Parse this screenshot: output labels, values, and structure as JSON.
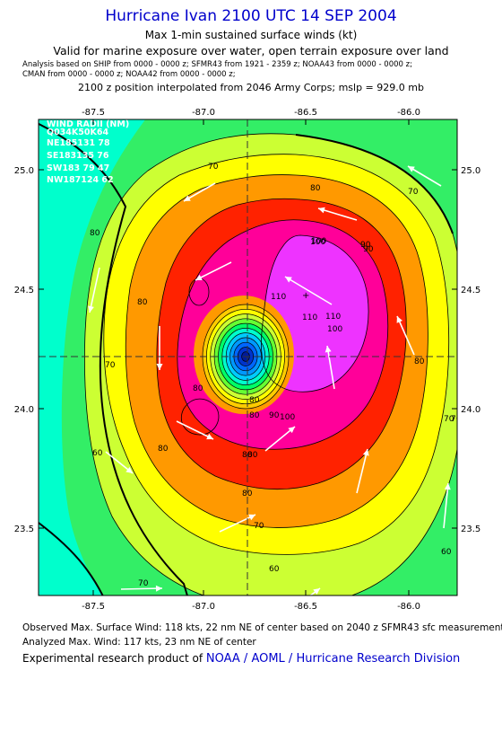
{
  "header": {
    "title": "Hurricane Ivan 2100 UTC 14 SEP 2004",
    "subtitle1": "Max 1-min sustained surface winds (kt)",
    "subtitle2": "Valid for marine exposure over water, open terrain exposure over land",
    "analysis_line1": "Analysis based on  SHIP from 0000 - 0000 z;  SFMR43 from 1921 - 2359 z;  NOAA43 from 0000 - 0000 z;",
    "analysis_line2": "CMAN from 0000 - 0000 z;  NOAA42 from 0000 - 0000 z;",
    "position_line": "2100 z position interpolated from 2046 Army Corps; mslp = 929.0 mb"
  },
  "map": {
    "lon_ticks": [
      "-87.5",
      "-87.0",
      "-86.5",
      "-86.0"
    ],
    "lat_ticks": [
      "25.0",
      "24.5",
      "24.0",
      "23.5"
    ],
    "lon_range": [
      -87.75,
      -86.2
    ],
    "lat_range": [
      23.2,
      25.25
    ],
    "center": {
      "lon": -86.78,
      "lat": 24.22
    },
    "wind_radii": {
      "title": "WIND RADII (NM)",
      "header": "Q034K50K64",
      "rows": [
        "NE185131 78",
        "SE183135 76",
        "SW183 79 47",
        "NW187124 62"
      ]
    },
    "contour_labels": [
      "70",
      "80",
      "90",
      "100",
      "110",
      "80",
      "70",
      "80",
      "80",
      "90",
      "100",
      "80",
      "80",
      "70",
      "70",
      "60",
      "60",
      "60",
      "80",
      "80",
      "70",
      "80",
      "80",
      "80",
      "70",
      "70",
      "110",
      "110",
      "100",
      "90",
      "100"
    ],
    "colors": {
      "cyan": "#00ffcc",
      "green": "#33ee66",
      "yellowgreen": "#ccff33",
      "yellow": "#ffff00",
      "orange": "#ff9900",
      "red": "#ff2200",
      "magenta": "#ff0099",
      "violet": "#ee33ff"
    }
  },
  "footer": {
    "observed": "Observed Max. Surface Wind: 118 kts, 22 nm NE of center based on 2040 z SFMR43 sfc measurement",
    "analyzed": "Analyzed Max. Wind: 117 kts, 23 nm NE of center",
    "product_prefix": "Experimental research product of ",
    "product_link": "NOAA / AOML / Hurricane Research Division"
  }
}
